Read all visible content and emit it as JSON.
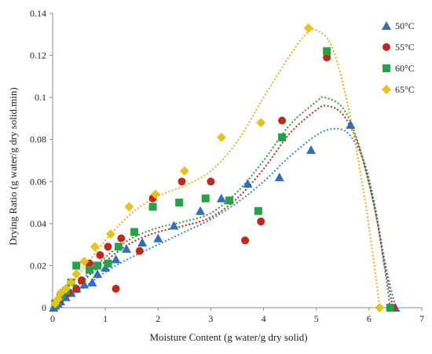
{
  "chart_data": {
    "type": "scatter",
    "title": "",
    "xlabel": "Moisture Content (g water/g dry solid)",
    "ylabel": "Drying Ratio (g water/g dry solid.min)",
    "xlim": [
      0,
      7
    ],
    "ylim": [
      0,
      0.14
    ],
    "xticks": [
      "0",
      "1",
      "2",
      "3",
      "4",
      "5",
      "6",
      "7"
    ],
    "yticks": [
      "0",
      "0.02",
      "0.04",
      "0.06",
      "0.08",
      "0.1",
      "0.12",
      "0.14"
    ],
    "grid": false,
    "legend_position": "right",
    "series": [
      {
        "name": "50°C",
        "marker": "triangle",
        "color": "#2e6fbe",
        "points": [
          [
            0.02,
            0.0
          ],
          [
            0.05,
            0.001
          ],
          [
            0.1,
            0.002
          ],
          [
            0.15,
            0.003
          ],
          [
            0.25,
            0.005
          ],
          [
            0.35,
            0.007
          ],
          [
            0.45,
            0.009
          ],
          [
            0.6,
            0.011
          ],
          [
            0.75,
            0.012
          ],
          [
            0.85,
            0.016
          ],
          [
            1.0,
            0.019
          ],
          [
            1.2,
            0.023
          ],
          [
            1.4,
            0.028
          ],
          [
            1.7,
            0.031
          ],
          [
            2.0,
            0.033
          ],
          [
            2.3,
            0.039
          ],
          [
            2.8,
            0.046
          ],
          [
            3.2,
            0.052
          ],
          [
            3.7,
            0.059
          ],
          [
            4.3,
            0.062
          ],
          [
            4.9,
            0.075
          ],
          [
            5.65,
            0.087
          ],
          [
            6.5,
            0.0
          ]
        ],
        "trend": [
          [
            0,
            0
          ],
          [
            0.5,
            0.008
          ],
          [
            1,
            0.017
          ],
          [
            1.5,
            0.024
          ],
          [
            2,
            0.03
          ],
          [
            2.5,
            0.036
          ],
          [
            3,
            0.042
          ],
          [
            3.5,
            0.05
          ],
          [
            4,
            0.06
          ],
          [
            4.5,
            0.072
          ],
          [
            5,
            0.082
          ],
          [
            5.3,
            0.085
          ],
          [
            5.6,
            0.083
          ],
          [
            5.9,
            0.07
          ],
          [
            6.1,
            0.05
          ],
          [
            6.3,
            0.022
          ],
          [
            6.5,
            0.0
          ]
        ],
        "trend_color": "#3a86d6"
      },
      {
        "name": "55°C",
        "marker": "circle",
        "color": "#c0281b",
        "points": [
          [
            0.05,
            0.002
          ],
          [
            0.15,
            0.004
          ],
          [
            0.3,
            0.007
          ],
          [
            0.45,
            0.009
          ],
          [
            0.55,
            0.013
          ],
          [
            0.7,
            0.021
          ],
          [
            0.9,
            0.025
          ],
          [
            1.05,
            0.029
          ],
          [
            1.2,
            0.009
          ],
          [
            1.3,
            0.033
          ],
          [
            1.65,
            0.027
          ],
          [
            1.9,
            0.052
          ],
          [
            2.45,
            0.06
          ],
          [
            3.0,
            0.06
          ],
          [
            3.65,
            0.032
          ],
          [
            3.95,
            0.041
          ],
          [
            4.35,
            0.089
          ],
          [
            5.2,
            0.119
          ],
          [
            6.45,
            0.0
          ]
        ],
        "trend": [
          [
            0,
            0
          ],
          [
            0.5,
            0.011
          ],
          [
            1,
            0.022
          ],
          [
            1.5,
            0.031
          ],
          [
            2,
            0.036
          ],
          [
            2.5,
            0.039
          ],
          [
            3,
            0.043
          ],
          [
            3.5,
            0.052
          ],
          [
            4,
            0.066
          ],
          [
            4.5,
            0.083
          ],
          [
            5,
            0.094
          ],
          [
            5.2,
            0.096
          ],
          [
            5.5,
            0.092
          ],
          [
            5.8,
            0.077
          ],
          [
            6.1,
            0.048
          ],
          [
            6.3,
            0.02
          ],
          [
            6.45,
            0.0
          ]
        ],
        "trend_color": "#c0281b"
      },
      {
        "name": "60°C",
        "marker": "square",
        "color": "#27a04a",
        "points": [
          [
            0.05,
            0.002
          ],
          [
            0.15,
            0.005
          ],
          [
            0.25,
            0.008
          ],
          [
            0.35,
            0.012
          ],
          [
            0.45,
            0.02
          ],
          [
            0.7,
            0.018
          ],
          [
            0.85,
            0.02
          ],
          [
            1.05,
            0.021
          ],
          [
            1.25,
            0.029
          ],
          [
            1.55,
            0.036
          ],
          [
            1.9,
            0.048
          ],
          [
            2.4,
            0.05
          ],
          [
            2.9,
            0.052
          ],
          [
            3.35,
            0.051
          ],
          [
            3.9,
            0.046
          ],
          [
            4.35,
            0.081
          ],
          [
            5.2,
            0.122
          ],
          [
            6.4,
            0.0
          ]
        ],
        "trend": [
          [
            0,
            0
          ],
          [
            0.5,
            0.012
          ],
          [
            1,
            0.024
          ],
          [
            1.5,
            0.033
          ],
          [
            2,
            0.038
          ],
          [
            2.5,
            0.041
          ],
          [
            3,
            0.045
          ],
          [
            3.5,
            0.055
          ],
          [
            4,
            0.07
          ],
          [
            4.5,
            0.087
          ],
          [
            5,
            0.098
          ],
          [
            5.15,
            0.1
          ],
          [
            5.5,
            0.095
          ],
          [
            5.8,
            0.078
          ],
          [
            6.1,
            0.048
          ],
          [
            6.3,
            0.018
          ],
          [
            6.4,
            0.0
          ]
        ],
        "trend_color": "#2f9a4a"
      },
      {
        "name": "65°C",
        "marker": "diamond",
        "color": "#e8c21a",
        "points": [
          [
            0.05,
            0.002
          ],
          [
            0.1,
            0.004
          ],
          [
            0.15,
            0.007
          ],
          [
            0.25,
            0.009
          ],
          [
            0.35,
            0.012
          ],
          [
            0.45,
            0.016
          ],
          [
            0.6,
            0.022
          ],
          [
            0.8,
            0.029
          ],
          [
            1.1,
            0.035
          ],
          [
            1.45,
            0.048
          ],
          [
            1.95,
            0.054
          ],
          [
            2.5,
            0.065
          ],
          [
            3.2,
            0.081
          ],
          [
            3.95,
            0.088
          ],
          [
            4.85,
            0.133
          ],
          [
            6.2,
            0.0
          ]
        ],
        "trend": [
          [
            0,
            0
          ],
          [
            0.5,
            0.016
          ],
          [
            1,
            0.032
          ],
          [
            1.5,
            0.045
          ],
          [
            2,
            0.053
          ],
          [
            2.5,
            0.058
          ],
          [
            3,
            0.065
          ],
          [
            3.5,
            0.079
          ],
          [
            4,
            0.1
          ],
          [
            4.5,
            0.12
          ],
          [
            4.8,
            0.13
          ],
          [
            5.0,
            0.132
          ],
          [
            5.3,
            0.124
          ],
          [
            5.6,
            0.096
          ],
          [
            5.9,
            0.055
          ],
          [
            6.1,
            0.02
          ],
          [
            6.2,
            0.0
          ]
        ],
        "trend_color": "#e2b416"
      }
    ]
  }
}
